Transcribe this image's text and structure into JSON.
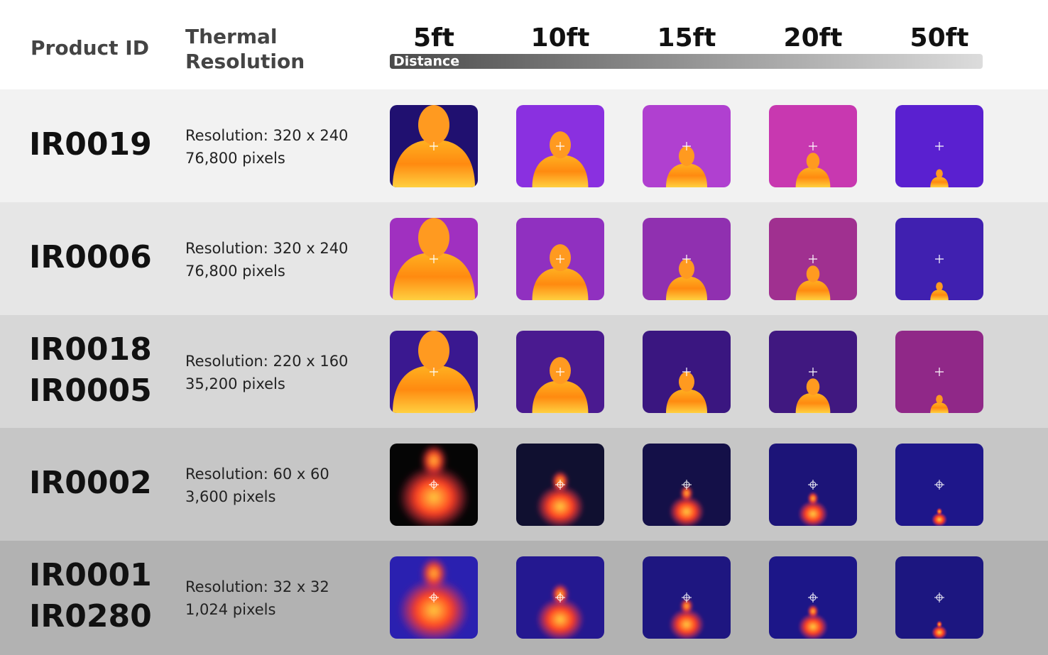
{
  "header": {
    "product_id": "Product ID",
    "thermal_resolution": [
      "Thermal",
      "Resolution"
    ],
    "distances": [
      "5ft",
      "10ft",
      "15ft",
      "20ft",
      "50ft"
    ],
    "distance_label": "Distance"
  },
  "rows": [
    {
      "ids": [
        "IR0019"
      ],
      "resolution": "Resolution: 320 x 240",
      "pixels": "76,800 pixels"
    },
    {
      "ids": [
        "IR0006"
      ],
      "resolution": "Resolution: 320 x 240",
      "pixels": "76,800 pixels"
    },
    {
      "ids": [
        "IR0018",
        "IR0005"
      ],
      "resolution": "Resolution: 220 x 160",
      "pixels": "35,200 pixels"
    },
    {
      "ids": [
        "IR0002"
      ],
      "resolution": "Resolution: 60 x 60",
      "pixels": "3,600 pixels"
    },
    {
      "ids": [
        "IR0001",
        "IR0280"
      ],
      "resolution": "Resolution: 32 x 32",
      "pixels": "1,024 pixels"
    }
  ]
}
